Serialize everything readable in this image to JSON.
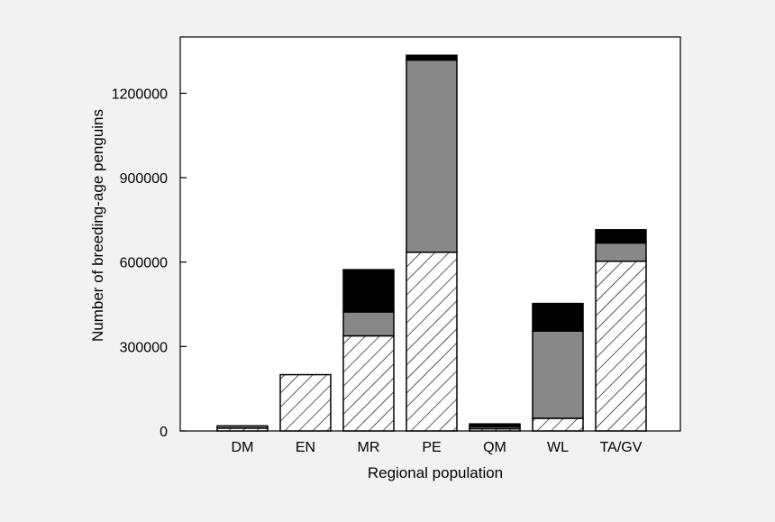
{
  "chart_data": {
    "type": "bar",
    "stacked": true,
    "xlabel": "Regional population",
    "ylabel": "Number of breeding-age penguins",
    "categories": [
      "DM",
      "EN",
      "MR",
      "PE",
      "QM",
      "WL",
      "TA/GV"
    ],
    "ylim": [
      0,
      1400000
    ],
    "yticks": [
      0,
      300000,
      600000,
      900000,
      1200000
    ],
    "grid": false,
    "series": [
      {
        "values": [
          10000,
          200000,
          338000,
          635000,
          8000,
          45000,
          603000
        ],
        "fill": "hatch"
      },
      {
        "values": [
          8000,
          0,
          85000,
          683000,
          7000,
          310000,
          65000
        ],
        "fill": "#888888"
      },
      {
        "values": [
          0,
          0,
          150000,
          17000,
          10000,
          98000,
          47000
        ],
        "fill": "#000000"
      }
    ]
  },
  "colors": {
    "background": "#f2f2f2",
    "plot_background": "#ffffff",
    "gray": "#888888",
    "black": "#000000"
  }
}
